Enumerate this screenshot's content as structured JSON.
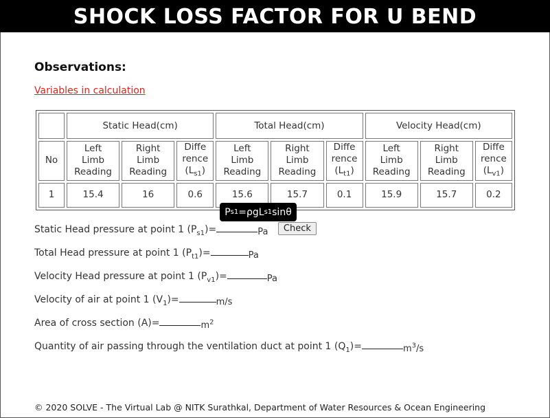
{
  "title": "SHOCK LOSS FACTOR FOR U BEND",
  "observations_label": "Observations:",
  "variables_link": "Variables in calculation",
  "table": {
    "groups": [
      "Static Head(cm)",
      "Total Head(cm)",
      "Velocity Head(cm)"
    ],
    "no_label": "No",
    "left_limb": [
      "Left",
      "Limb",
      "Reading"
    ],
    "right_limb": [
      "Right",
      "Limb",
      "Reading"
    ],
    "diff": [
      "Diffe",
      "rence"
    ],
    "diff_static": {
      "base": "(L",
      "sub": "s1",
      "end": ")"
    },
    "diff_total": {
      "base": "(L",
      "sub": "t1",
      "end": ")"
    },
    "diff_velocity": {
      "base": "(L",
      "sub": "v1",
      "end": ")"
    },
    "row": {
      "no": "1",
      "static_left": "15.4",
      "static_right": "16",
      "static_diff": "0.6",
      "total_left": "15.6",
      "total_right": "15.7",
      "total_diff": "0.1",
      "velocity_left": "15.9",
      "velocity_right": "15.7",
      "velocity_diff": "0.2"
    }
  },
  "tooltip": {
    "p": "P",
    "s1": "s1",
    "mid": "=ρgL",
    "s1b": "s1",
    "end": "sinθ"
  },
  "questions": {
    "static": {
      "label": "Static Head pressure at point 1 (P",
      "sub": "s1",
      "end": ")=",
      "unit": "Pa"
    },
    "total": {
      "label": "Total Head pressure at point 1 (P",
      "sub": "t1",
      "end": ")=",
      "unit": "Pa"
    },
    "velocity_head": {
      "label": "Velocity Head pressure at point 1 (P",
      "sub": "v1",
      "end": ")=",
      "unit": "Pa"
    },
    "velocity_air": {
      "label": "Velocity of air at point 1 (V",
      "sub": "1",
      "end": ")=",
      "unit": "m/s"
    },
    "area": {
      "label": "Area of cross section (A)=",
      "unit": "m",
      "sup": "2"
    },
    "quantity": {
      "label": "Quantity of air passing through the ventilation duct at point 1 (Q",
      "sub": "1",
      "end": ")=",
      "unit": "m",
      "sup": "3",
      "unit_end": "/s"
    }
  },
  "check_button": "Check",
  "footer": "© 2020 SOLVE - The Virtual Lab @ NITK Surathkal, Department of Water Resources & Ocean Engineering"
}
